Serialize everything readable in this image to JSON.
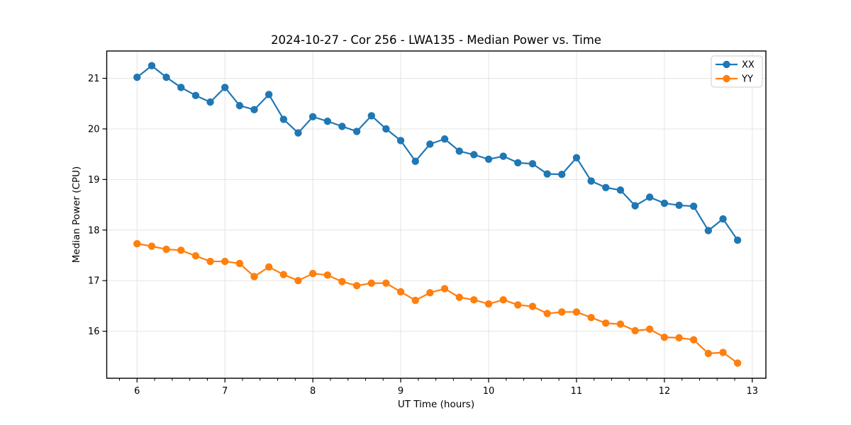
{
  "chart_data": {
    "type": "line",
    "title": "2024-10-27 - Cor 256 - LWA135 - Median Power vs. Time",
    "xlabel": "UT Time (hours)",
    "ylabel": "Median Power (CPU)",
    "xlim": [
      5.655,
      13.155
    ],
    "ylim": [
      15.07,
      21.54
    ],
    "x_ticks": [
      6,
      7,
      8,
      9,
      10,
      11,
      12,
      13
    ],
    "y_ticks": [
      16,
      17,
      18,
      19,
      20,
      21
    ],
    "x_minor_step": 0.2,
    "grid": true,
    "legend_position": "upper right",
    "x": [
      6.0,
      6.167,
      6.333,
      6.5,
      6.667,
      6.833,
      7.0,
      7.167,
      7.333,
      7.5,
      7.667,
      7.833,
      8.0,
      8.167,
      8.333,
      8.5,
      8.667,
      8.833,
      9.0,
      9.167,
      9.333,
      9.5,
      9.667,
      9.833,
      10.0,
      10.167,
      10.333,
      10.5,
      10.667,
      10.833,
      11.0,
      11.167,
      11.333,
      11.5,
      11.667,
      11.833,
      12.0,
      12.167,
      12.333,
      12.5,
      12.667,
      12.833
    ],
    "series": [
      {
        "name": "XX",
        "color": "#1f77b4",
        "values": [
          21.02,
          21.25,
          21.02,
          20.82,
          20.66,
          20.53,
          20.82,
          20.46,
          20.38,
          20.68,
          20.19,
          19.92,
          20.24,
          20.15,
          20.05,
          19.95,
          20.26,
          20.0,
          19.77,
          19.36,
          19.7,
          19.8,
          19.56,
          19.49,
          19.4,
          19.46,
          19.33,
          19.31,
          19.11,
          19.1,
          19.43,
          18.97,
          18.84,
          18.79,
          18.48,
          18.65,
          18.53,
          18.49,
          18.47,
          17.99,
          18.22,
          17.8
        ]
      },
      {
        "name": "YY",
        "color": "#ff7f0e",
        "values": [
          17.73,
          17.68,
          17.62,
          17.6,
          17.49,
          17.38,
          17.38,
          17.34,
          17.08,
          17.27,
          17.12,
          17.0,
          17.14,
          17.11,
          16.98,
          16.9,
          16.95,
          16.95,
          16.78,
          16.61,
          16.76,
          16.84,
          16.67,
          16.62,
          16.54,
          16.62,
          16.52,
          16.49,
          16.35,
          16.38,
          16.38,
          16.27,
          16.16,
          16.14,
          16.01,
          16.04,
          15.88,
          15.87,
          15.83,
          15.56,
          15.58,
          15.37
        ]
      }
    ]
  },
  "style": {
    "grid_color": "#e4e4e4",
    "spine_color": "#000000",
    "legend_border_color": "#cccccc",
    "legend_bg_color": "#ffffff",
    "marker_radius": 5.2,
    "line_width": 2.2
  }
}
